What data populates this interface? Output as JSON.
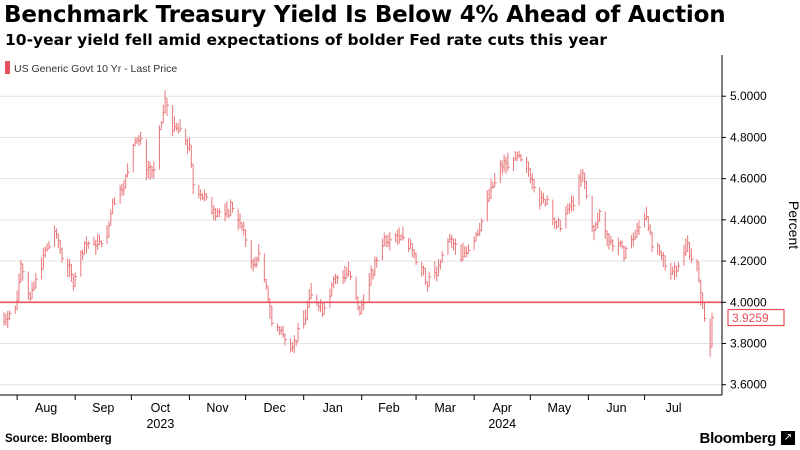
{
  "header": {
    "title": "Benchmark Treasury Yield Is Below 4% Ahead of Auction",
    "subtitle": "10-year yield fell amid expectations of bolder Fed rate cuts this year"
  },
  "footer": {
    "source": "Source: Bloomberg",
    "brand": "Bloomberg",
    "brand_mark_icon": "expand-icon"
  },
  "colors": {
    "series": "#e8767a",
    "threshold": "#e8505b",
    "grid": "#e3e3e3",
    "text": "#000000"
  },
  "chart_data": {
    "type": "bar",
    "subtype": "daily high-low bars",
    "ylabel": "Percent",
    "ylim": [
      3.55,
      5.2
    ],
    "yticks": [
      3.6,
      3.8,
      4.0,
      4.2,
      4.4,
      4.6,
      4.8,
      5.0
    ],
    "ytick_labels": [
      "3.6000",
      "3.8000",
      "4.0000",
      "4.2000",
      "4.4000",
      "4.6000",
      "4.8000",
      "5.0000"
    ],
    "grid": true,
    "legend_position": "top-left",
    "reference_line": 4.0,
    "last_value_label": "3.9259",
    "last_value": 3.9259,
    "x_months": [
      "Aug",
      "Sep",
      "Oct",
      "Nov",
      "Dec",
      "Jan",
      "Feb",
      "Mar",
      "Apr",
      "May",
      "Jun",
      "Jul"
    ],
    "x_year_labels": [
      {
        "month": "Oct",
        "year": "2023"
      },
      {
        "month": "Apr",
        "year": "2024"
      }
    ],
    "series": [
      {
        "name": "US Generic Govt 10 Yr - Last Price",
        "start_date": "2023-07-25",
        "end_date": "2024-08-06",
        "anchors": [
          [
            "2023-07-25",
            3.92
          ],
          [
            "2023-07-31",
            3.96
          ],
          [
            "2023-08-03",
            4.18
          ],
          [
            "2023-08-08",
            4.02
          ],
          [
            "2023-08-15",
            4.22
          ],
          [
            "2023-08-21",
            4.34
          ],
          [
            "2023-08-25",
            4.24
          ],
          [
            "2023-08-31",
            4.1
          ],
          [
            "2023-09-06",
            4.28
          ],
          [
            "2023-09-12",
            4.28
          ],
          [
            "2023-09-18",
            4.32
          ],
          [
            "2023-09-21",
            4.49
          ],
          [
            "2023-09-28",
            4.59
          ],
          [
            "2023-10-03",
            4.8
          ],
          [
            "2023-10-06",
            4.78
          ],
          [
            "2023-10-09",
            4.65
          ],
          [
            "2023-10-13",
            4.63
          ],
          [
            "2023-10-19",
            4.98
          ],
          [
            "2023-10-23",
            4.85
          ],
          [
            "2023-10-27",
            4.84
          ],
          [
            "2023-11-01",
            4.75
          ],
          [
            "2023-11-03",
            4.57
          ],
          [
            "2023-11-08",
            4.52
          ],
          [
            "2023-11-14",
            4.45
          ],
          [
            "2023-11-20",
            4.42
          ],
          [
            "2023-11-24",
            4.47
          ],
          [
            "2023-11-30",
            4.34
          ],
          [
            "2023-12-05",
            4.17
          ],
          [
            "2023-12-08",
            4.23
          ],
          [
            "2023-12-13",
            4.03
          ],
          [
            "2023-12-15",
            3.91
          ],
          [
            "2023-12-20",
            3.86
          ],
          [
            "2023-12-27",
            3.79
          ],
          [
            "2024-01-02",
            3.94
          ],
          [
            "2024-01-05",
            4.05
          ],
          [
            "2024-01-11",
            3.97
          ],
          [
            "2024-01-17",
            4.1
          ],
          [
            "2024-01-25",
            4.15
          ],
          [
            "2024-01-31",
            3.95
          ],
          [
            "2024-02-02",
            4.02
          ],
          [
            "2024-02-08",
            4.17
          ],
          [
            "2024-02-13",
            4.31
          ],
          [
            "2024-02-22",
            4.33
          ],
          [
            "2024-02-29",
            4.25
          ],
          [
            "2024-03-07",
            4.09
          ],
          [
            "2024-03-12",
            4.15
          ],
          [
            "2024-03-19",
            4.3
          ],
          [
            "2024-03-25",
            4.22
          ],
          [
            "2024-04-01",
            4.31
          ],
          [
            "2024-04-05",
            4.39
          ],
          [
            "2024-04-10",
            4.55
          ],
          [
            "2024-04-16",
            4.66
          ],
          [
            "2024-04-25",
            4.7
          ],
          [
            "2024-05-01",
            4.63
          ],
          [
            "2024-05-06",
            4.49
          ],
          [
            "2024-05-10",
            4.5
          ],
          [
            "2024-05-15",
            4.36
          ],
          [
            "2024-05-23",
            4.47
          ],
          [
            "2024-05-29",
            4.62
          ],
          [
            "2024-06-04",
            4.33
          ],
          [
            "2024-06-07",
            4.43
          ],
          [
            "2024-06-12",
            4.3
          ],
          [
            "2024-06-21",
            4.25
          ],
          [
            "2024-06-28",
            4.36
          ],
          [
            "2024-07-02",
            4.44
          ],
          [
            "2024-07-05",
            4.28
          ],
          [
            "2024-07-11",
            4.2
          ],
          [
            "2024-07-17",
            4.15
          ],
          [
            "2024-07-24",
            4.28
          ],
          [
            "2024-07-29",
            4.17
          ],
          [
            "2024-08-01",
            3.98
          ],
          [
            "2024-08-05",
            3.78
          ],
          [
            "2024-08-06",
            3.9259
          ]
        ]
      }
    ]
  }
}
